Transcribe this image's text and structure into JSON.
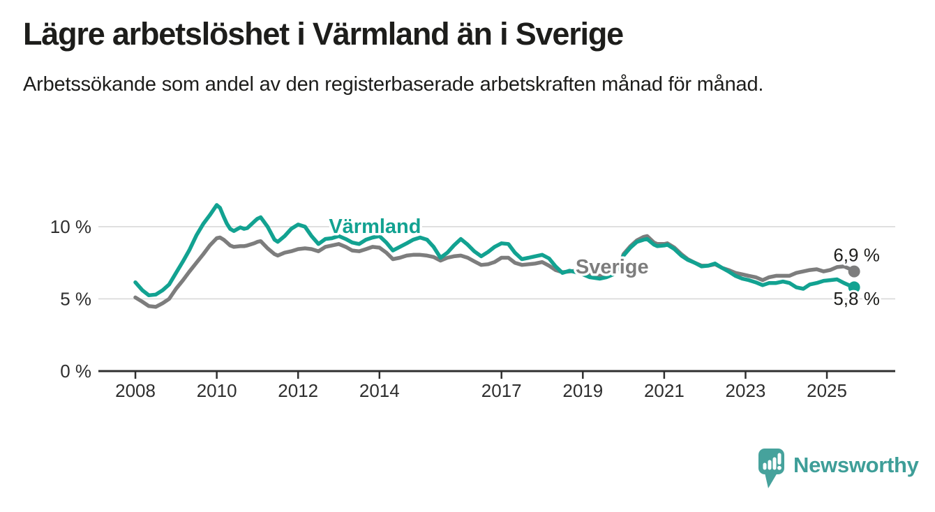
{
  "header": {
    "title": "Lägre arbetslöshet i Värmland än i Sverige",
    "subtitle": "Arbetssökande som andel av den registerbaserade arbetskraften månad för månad."
  },
  "footer": {
    "brand": "Newsworthy",
    "brand_color": "#3E9E98",
    "logo_icon_color": "#46A29C"
  },
  "chart_data": {
    "type": "line",
    "title": "Lägre arbetslöshet i Värmland än i Sverige",
    "xlabel": "",
    "ylabel": "",
    "grid": "horizontal-only",
    "legend_position": "inline-series-labels",
    "xlim": [
      2007.09,
      2026.68
    ],
    "ylim": [
      0,
      11.93
    ],
    "x_ticks": [
      {
        "label": "2008",
        "value": 2008
      },
      {
        "label": "2010",
        "value": 2010
      },
      {
        "label": "2012",
        "value": 2012
      },
      {
        "label": "2014",
        "value": 2014
      },
      {
        "label": "2017",
        "value": 2017
      },
      {
        "label": "2019",
        "value": 2019
      },
      {
        "label": "2021",
        "value": 2021
      },
      {
        "label": "2023",
        "value": 2023
      },
      {
        "label": "2025",
        "value": 2025
      }
    ],
    "y_ticks": [
      {
        "label": "0 %",
        "value": 0
      },
      {
        "label": "5 %",
        "value": 5
      },
      {
        "label": "10 %",
        "value": 10
      }
    ],
    "colors": {
      "varmland": "#12A291",
      "sverige": "#7D7D7D",
      "grid": "#D9D9D9",
      "axis": "#2F2F2F",
      "tick_text": "#2E2E2E",
      "value_label_text": "#1D1D1B"
    },
    "series": [
      {
        "name": "Sverige",
        "color": "#7D7D7D",
        "end_value_label": "6,9 %",
        "end_value": 6.9,
        "inline_label": {
          "text": "Sverige",
          "x": 2019.72,
          "y": 7.25
        },
        "end_label_anchor": {
          "x": 2026.3,
          "y": 7.6
        },
        "points": [
          [
            2008.0,
            5.1
          ],
          [
            2008.17,
            4.8
          ],
          [
            2008.33,
            4.5
          ],
          [
            2008.5,
            4.45
          ],
          [
            2008.67,
            4.7
          ],
          [
            2008.83,
            5.0
          ],
          [
            2009.0,
            5.7
          ],
          [
            2009.17,
            6.3
          ],
          [
            2009.33,
            6.9
          ],
          [
            2009.5,
            7.5
          ],
          [
            2009.67,
            8.1
          ],
          [
            2009.83,
            8.7
          ],
          [
            2010.0,
            9.2
          ],
          [
            2010.08,
            9.25
          ],
          [
            2010.17,
            9.1
          ],
          [
            2010.25,
            8.9
          ],
          [
            2010.33,
            8.7
          ],
          [
            2010.42,
            8.6
          ],
          [
            2010.58,
            8.65
          ],
          [
            2010.67,
            8.65
          ],
          [
            2010.75,
            8.7
          ],
          [
            2010.92,
            8.85
          ],
          [
            2011.0,
            8.95
          ],
          [
            2011.08,
            9.0
          ],
          [
            2011.25,
            8.5
          ],
          [
            2011.42,
            8.1
          ],
          [
            2011.5,
            8.0
          ],
          [
            2011.67,
            8.2
          ],
          [
            2011.83,
            8.3
          ],
          [
            2012.0,
            8.45
          ],
          [
            2012.17,
            8.5
          ],
          [
            2012.33,
            8.45
          ],
          [
            2012.5,
            8.3
          ],
          [
            2012.67,
            8.6
          ],
          [
            2012.83,
            8.7
          ],
          [
            2013.0,
            8.8
          ],
          [
            2013.17,
            8.6
          ],
          [
            2013.33,
            8.35
          ],
          [
            2013.5,
            8.3
          ],
          [
            2013.67,
            8.45
          ],
          [
            2013.83,
            8.6
          ],
          [
            2014.0,
            8.55
          ],
          [
            2014.17,
            8.2
          ],
          [
            2014.33,
            7.75
          ],
          [
            2014.5,
            7.85
          ],
          [
            2014.67,
            8.0
          ],
          [
            2014.83,
            8.05
          ],
          [
            2015.0,
            8.05
          ],
          [
            2015.17,
            8.0
          ],
          [
            2015.33,
            7.9
          ],
          [
            2015.5,
            7.65
          ],
          [
            2015.67,
            7.85
          ],
          [
            2015.83,
            7.95
          ],
          [
            2016.0,
            8.0
          ],
          [
            2016.17,
            7.85
          ],
          [
            2016.33,
            7.6
          ],
          [
            2016.5,
            7.35
          ],
          [
            2016.67,
            7.4
          ],
          [
            2016.83,
            7.55
          ],
          [
            2017.0,
            7.85
          ],
          [
            2017.17,
            7.85
          ],
          [
            2017.33,
            7.5
          ],
          [
            2017.5,
            7.35
          ],
          [
            2017.67,
            7.4
          ],
          [
            2017.83,
            7.45
          ],
          [
            2018.0,
            7.55
          ],
          [
            2018.17,
            7.3
          ],
          [
            2018.33,
            7.0
          ],
          [
            2018.5,
            6.85
          ],
          [
            2018.67,
            6.9
          ],
          [
            2018.83,
            6.95
          ],
          [
            2019.0,
            6.8
          ],
          [
            2019.17,
            6.65
          ],
          [
            2019.42,
            6.6
          ],
          [
            2019.58,
            6.6
          ],
          [
            2019.75,
            6.8
          ],
          [
            2019.92,
            7.4
          ],
          [
            2020.0,
            8.1
          ],
          [
            2020.17,
            8.65
          ],
          [
            2020.33,
            9.05
          ],
          [
            2020.5,
            9.3
          ],
          [
            2020.58,
            9.35
          ],
          [
            2020.75,
            8.9
          ],
          [
            2020.83,
            8.8
          ],
          [
            2021.0,
            8.8
          ],
          [
            2021.08,
            8.85
          ],
          [
            2021.25,
            8.55
          ],
          [
            2021.42,
            8.1
          ],
          [
            2021.58,
            7.75
          ],
          [
            2021.75,
            7.5
          ],
          [
            2021.92,
            7.3
          ],
          [
            2022.08,
            7.3
          ],
          [
            2022.25,
            7.4
          ],
          [
            2022.42,
            7.15
          ],
          [
            2022.58,
            7.0
          ],
          [
            2022.75,
            6.8
          ],
          [
            2022.92,
            6.7
          ],
          [
            2023.08,
            6.6
          ],
          [
            2023.25,
            6.5
          ],
          [
            2023.42,
            6.3
          ],
          [
            2023.58,
            6.5
          ],
          [
            2023.75,
            6.6
          ],
          [
            2023.92,
            6.6
          ],
          [
            2024.08,
            6.6
          ],
          [
            2024.25,
            6.8
          ],
          [
            2024.42,
            6.9
          ],
          [
            2024.58,
            7.0
          ],
          [
            2024.75,
            7.05
          ],
          [
            2024.92,
            6.9
          ],
          [
            2025.08,
            7.0
          ],
          [
            2025.25,
            7.2
          ],
          [
            2025.42,
            7.25
          ],
          [
            2025.58,
            7.05
          ],
          [
            2025.67,
            6.9
          ]
        ]
      },
      {
        "name": "Värmland",
        "color": "#12A291",
        "end_value_label": "5,8 %",
        "end_value": 5.8,
        "inline_label": {
          "text": "Värmland",
          "x": 2013.89,
          "y": 10.05
        },
        "end_label_anchor": {
          "x": 2026.3,
          "y": 4.6
        },
        "points": [
          [
            2008.0,
            6.15
          ],
          [
            2008.17,
            5.6
          ],
          [
            2008.33,
            5.25
          ],
          [
            2008.5,
            5.3
          ],
          [
            2008.67,
            5.6
          ],
          [
            2008.83,
            6.0
          ],
          [
            2009.0,
            6.8
          ],
          [
            2009.17,
            7.6
          ],
          [
            2009.33,
            8.4
          ],
          [
            2009.5,
            9.4
          ],
          [
            2009.67,
            10.2
          ],
          [
            2009.83,
            10.8
          ],
          [
            2010.0,
            11.5
          ],
          [
            2010.08,
            11.3
          ],
          [
            2010.17,
            10.7
          ],
          [
            2010.25,
            10.2
          ],
          [
            2010.33,
            9.85
          ],
          [
            2010.42,
            9.7
          ],
          [
            2010.58,
            9.95
          ],
          [
            2010.67,
            9.85
          ],
          [
            2010.75,
            9.9
          ],
          [
            2010.92,
            10.35
          ],
          [
            2011.0,
            10.55
          ],
          [
            2011.08,
            10.65
          ],
          [
            2011.25,
            10.0
          ],
          [
            2011.42,
            9.1
          ],
          [
            2011.5,
            8.95
          ],
          [
            2011.67,
            9.35
          ],
          [
            2011.83,
            9.85
          ],
          [
            2012.0,
            10.15
          ],
          [
            2012.17,
            10.0
          ],
          [
            2012.33,
            9.35
          ],
          [
            2012.5,
            8.8
          ],
          [
            2012.67,
            9.15
          ],
          [
            2012.83,
            9.2
          ],
          [
            2013.0,
            9.35
          ],
          [
            2013.17,
            9.15
          ],
          [
            2013.33,
            8.9
          ],
          [
            2013.5,
            8.8
          ],
          [
            2013.67,
            9.1
          ],
          [
            2013.83,
            9.25
          ],
          [
            2014.0,
            9.35
          ],
          [
            2014.17,
            8.9
          ],
          [
            2014.33,
            8.35
          ],
          [
            2014.5,
            8.6
          ],
          [
            2014.67,
            8.85
          ],
          [
            2014.83,
            9.1
          ],
          [
            2015.0,
            9.25
          ],
          [
            2015.17,
            9.1
          ],
          [
            2015.33,
            8.6
          ],
          [
            2015.5,
            7.85
          ],
          [
            2015.67,
            8.2
          ],
          [
            2015.83,
            8.7
          ],
          [
            2016.0,
            9.15
          ],
          [
            2016.17,
            8.75
          ],
          [
            2016.33,
            8.3
          ],
          [
            2016.5,
            7.95
          ],
          [
            2016.67,
            8.25
          ],
          [
            2016.83,
            8.6
          ],
          [
            2017.0,
            8.85
          ],
          [
            2017.17,
            8.8
          ],
          [
            2017.33,
            8.2
          ],
          [
            2017.5,
            7.75
          ],
          [
            2017.67,
            7.85
          ],
          [
            2017.83,
            7.95
          ],
          [
            2018.0,
            8.05
          ],
          [
            2018.17,
            7.8
          ],
          [
            2018.33,
            7.25
          ],
          [
            2018.5,
            6.8
          ],
          [
            2018.67,
            6.95
          ],
          [
            2018.83,
            6.85
          ],
          [
            2019.0,
            6.7
          ],
          [
            2019.17,
            6.5
          ],
          [
            2019.42,
            6.4
          ],
          [
            2019.58,
            6.5
          ],
          [
            2019.75,
            6.7
          ],
          [
            2019.92,
            7.3
          ],
          [
            2020.0,
            8.0
          ],
          [
            2020.17,
            8.55
          ],
          [
            2020.33,
            8.95
          ],
          [
            2020.5,
            9.1
          ],
          [
            2020.58,
            9.15
          ],
          [
            2020.75,
            8.75
          ],
          [
            2020.83,
            8.65
          ],
          [
            2021.0,
            8.7
          ],
          [
            2021.08,
            8.75
          ],
          [
            2021.25,
            8.45
          ],
          [
            2021.42,
            8.0
          ],
          [
            2021.58,
            7.7
          ],
          [
            2021.75,
            7.5
          ],
          [
            2021.92,
            7.25
          ],
          [
            2022.08,
            7.3
          ],
          [
            2022.25,
            7.45
          ],
          [
            2022.42,
            7.15
          ],
          [
            2022.58,
            6.9
          ],
          [
            2022.75,
            6.6
          ],
          [
            2022.92,
            6.4
          ],
          [
            2023.08,
            6.3
          ],
          [
            2023.25,
            6.15
          ],
          [
            2023.42,
            5.95
          ],
          [
            2023.58,
            6.1
          ],
          [
            2023.75,
            6.1
          ],
          [
            2023.92,
            6.2
          ],
          [
            2024.08,
            6.1
          ],
          [
            2024.25,
            5.8
          ],
          [
            2024.42,
            5.7
          ],
          [
            2024.58,
            6.0
          ],
          [
            2024.75,
            6.1
          ],
          [
            2024.92,
            6.25
          ],
          [
            2025.08,
            6.3
          ],
          [
            2025.25,
            6.35
          ],
          [
            2025.42,
            6.1
          ],
          [
            2025.58,
            5.9
          ],
          [
            2025.67,
            5.8
          ]
        ]
      }
    ]
  }
}
